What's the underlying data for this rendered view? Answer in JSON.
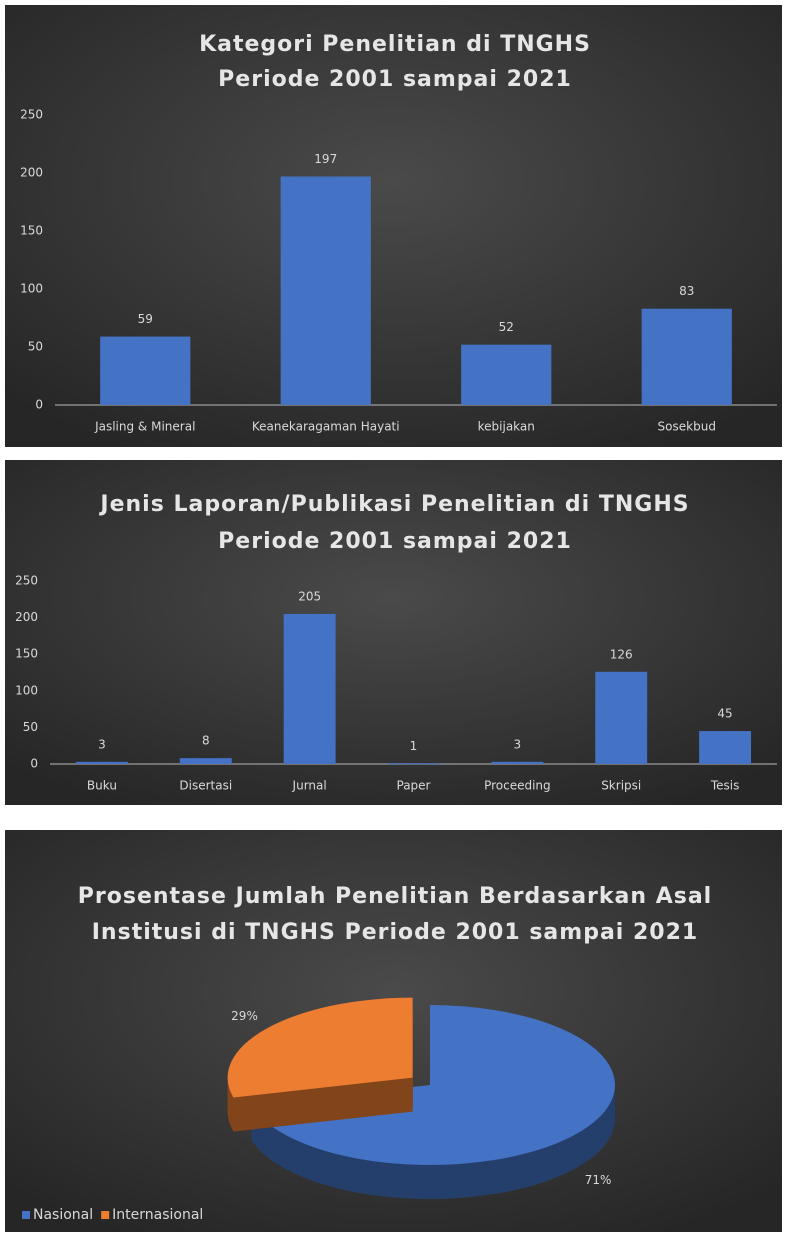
{
  "chart_data": [
    {
      "type": "bar",
      "title": [
        "Kategori Penelitian di TNGHS",
        "Periode 2001 sampai 2021"
      ],
      "categories": [
        "Jasling & Mineral",
        "Keanekaragaman Hayati",
        "kebijakan",
        "Sosekbud"
      ],
      "values": [
        59,
        197,
        52,
        83
      ],
      "color": "#4472c4",
      "ylim": [
        0,
        250
      ],
      "yticks": [
        0,
        50,
        100,
        150,
        200,
        250
      ],
      "grid": false
    },
    {
      "type": "bar",
      "title": [
        "Jenis Laporan/Publikasi Penelitian di TNGHS",
        "Periode 2001 sampai 2021"
      ],
      "categories": [
        "Buku",
        "Disertasi",
        "Jurnal",
        "Paper",
        "Proceeding",
        "Skripsi",
        "Tesis"
      ],
      "values": [
        3,
        8,
        205,
        1,
        3,
        126,
        45
      ],
      "color": "#4472c4",
      "ylim": [
        0,
        250
      ],
      "yticks": [
        0,
        50,
        100,
        150,
        200,
        250
      ],
      "grid": false
    },
    {
      "type": "pie",
      "title": [
        "Prosentase Jumlah Penelitian Berdasarkan Asal",
        "Institusi di TNGHS Periode 2001 sampai 2021"
      ],
      "categories": [
        "Nasional",
        "Internasional"
      ],
      "values": [
        71,
        29
      ],
      "value_labels": [
        "71%",
        "29%"
      ],
      "colors": [
        "#4472c4",
        "#ed7d31"
      ],
      "legend": "bottom-left"
    }
  ]
}
